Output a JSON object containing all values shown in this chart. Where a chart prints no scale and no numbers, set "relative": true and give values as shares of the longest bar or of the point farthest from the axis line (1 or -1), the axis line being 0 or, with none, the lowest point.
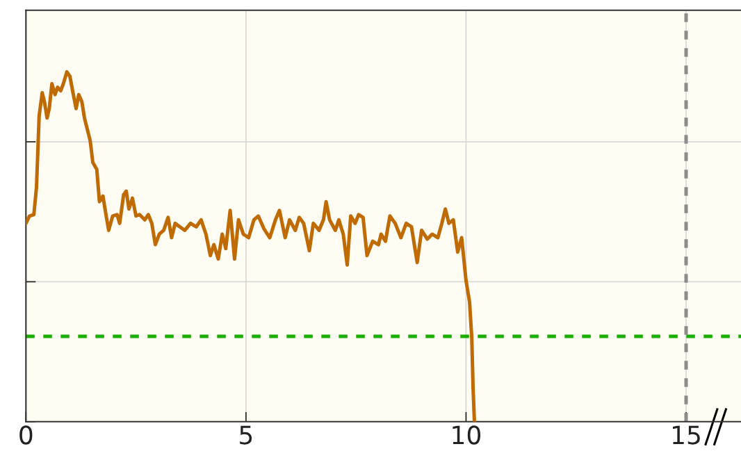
{
  "chart_data": {
    "type": "line",
    "relative": true,
    "xlim": [
      0,
      16.5
    ],
    "xticks": [
      0,
      5,
      10,
      15
    ],
    "grid": true,
    "line_style": "solid",
    "series": [
      {
        "color": "#c06a04",
        "x": [
          0,
          0.08,
          0.18,
          0.24,
          0.3,
          0.37,
          0.42,
          0.48,
          0.53,
          0.59,
          0.66,
          0.72,
          0.79,
          0.85,
          0.93,
          1.0,
          1.06,
          1.14,
          1.2,
          1.27,
          1.33,
          1.4,
          1.46,
          1.52,
          1.61,
          1.67,
          1.75,
          1.81,
          1.88,
          1.97,
          2.07,
          2.13,
          2.22,
          2.28,
          2.34,
          2.42,
          2.5,
          2.58,
          2.7,
          2.78,
          2.86,
          2.94,
          3.03,
          3.13,
          3.23,
          3.31,
          3.39,
          3.5,
          3.61,
          3.74,
          3.87,
          3.98,
          4.09,
          4.19,
          4.27,
          4.37,
          4.46,
          4.54,
          4.64,
          4.74,
          4.83,
          4.94,
          5.06,
          5.18,
          5.28,
          5.41,
          5.54,
          5.67,
          5.76,
          5.89,
          5.99,
          6.12,
          6.21,
          6.31,
          6.44,
          6.53,
          6.66,
          6.76,
          6.82,
          6.9,
          7.03,
          7.11,
          7.21,
          7.3,
          7.38,
          7.48,
          7.56,
          7.66,
          7.75,
          7.88,
          8.01,
          8.07,
          8.17,
          8.27,
          8.39,
          8.52,
          8.64,
          8.76,
          8.89,
          8.99,
          9.12,
          9.23,
          9.36,
          9.45,
          9.53,
          9.61,
          9.71,
          9.81,
          9.9,
          10.0,
          10.08,
          10.13,
          10.16,
          10.19
        ],
        "values": [
          0.567,
          0.588,
          0.592,
          0.67,
          0.874,
          0.94,
          0.915,
          0.868,
          0.895,
          0.966,
          0.935,
          0.956,
          0.946,
          0.966,
          1.0,
          0.987,
          0.946,
          0.895,
          0.935,
          0.915,
          0.868,
          0.833,
          0.803,
          0.741,
          0.721,
          0.629,
          0.645,
          0.598,
          0.547,
          0.588,
          0.592,
          0.567,
          0.649,
          0.659,
          0.608,
          0.639,
          0.588,
          0.592,
          0.577,
          0.592,
          0.567,
          0.506,
          0.536,
          0.547,
          0.584,
          0.526,
          0.567,
          0.557,
          0.547,
          0.567,
          0.557,
          0.577,
          0.536,
          0.475,
          0.506,
          0.465,
          0.536,
          0.495,
          0.604,
          0.465,
          0.577,
          0.536,
          0.526,
          0.577,
          0.588,
          0.551,
          0.526,
          0.577,
          0.604,
          0.526,
          0.577,
          0.547,
          0.584,
          0.567,
          0.489,
          0.567,
          0.547,
          0.577,
          0.629,
          0.577,
          0.547,
          0.577,
          0.536,
          0.448,
          0.588,
          0.567,
          0.592,
          0.584,
          0.475,
          0.516,
          0.506,
          0.536,
          0.516,
          0.588,
          0.567,
          0.526,
          0.567,
          0.557,
          0.455,
          0.547,
          0.522,
          0.536,
          0.526,
          0.567,
          0.608,
          0.567,
          0.577,
          0.485,
          0.526,
          0.403,
          0.342,
          0.24,
          0.096,
          0
        ]
      }
    ],
    "ref_lines": [
      {
        "axis": "y",
        "value": 0.244,
        "color": "#1aaf00",
        "line_style": "dashed"
      },
      {
        "axis": "x",
        "value": 15,
        "color": "#8c8c8c",
        "line_style": "dashed"
      }
    ]
  }
}
